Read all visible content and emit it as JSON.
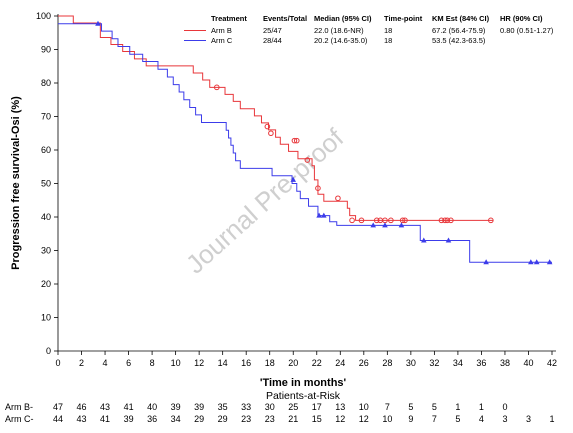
{
  "chart_data": {
    "type": "line",
    "subtype": "kaplan-meier",
    "ylabel": "Progression free survival-Osi (%)",
    "xlabel": "'Time in months'",
    "xlim": [
      0,
      42
    ],
    "ylim": [
      0,
      100
    ],
    "xticks": [
      "0",
      "2",
      "4",
      "6",
      "8",
      "10",
      "12",
      "14",
      "16",
      "18",
      "20",
      "22",
      "24",
      "26",
      "28",
      "30",
      "32",
      "34",
      "36",
      "38",
      "40",
      "42"
    ],
    "yticks": [
      "0",
      "10",
      "20",
      "30",
      "40",
      "50",
      "60",
      "70",
      "80",
      "90",
      "100"
    ],
    "colors": {
      "arm_b": "#e8363a",
      "arm_c": "#3c3cea"
    },
    "series": [
      {
        "name": "Arm B",
        "marker": "circle",
        "steps": [
          [
            0,
            100
          ],
          [
            1.3,
            97.9
          ],
          [
            3.6,
            93.6
          ],
          [
            4.5,
            91.5
          ],
          [
            5.5,
            89.4
          ],
          [
            6.5,
            87.2
          ],
          [
            7.5,
            85.1
          ],
          [
            11.5,
            83.0
          ],
          [
            12.3,
            80.9
          ],
          [
            12.9,
            78.7
          ],
          [
            14.2,
            76.6
          ],
          [
            14.9,
            74.5
          ],
          [
            15.5,
            72.3
          ],
          [
            16.7,
            70.2
          ],
          [
            17.3,
            68.1
          ],
          [
            17.9,
            66.0
          ],
          [
            18.5,
            63.8
          ],
          [
            18.9,
            61.7
          ],
          [
            19.6,
            59.6
          ],
          [
            20.4,
            57.4
          ],
          [
            21.6,
            55.3
          ],
          [
            21.8,
            51.1
          ],
          [
            22.1,
            46.8
          ],
          [
            22.6,
            44.7
          ],
          [
            24.6,
            42.6
          ],
          [
            24.8,
            40.4
          ],
          [
            25.3,
            39.0
          ],
          [
            37.0,
            39.0
          ]
        ],
        "censors": [
          [
            13.5,
            78.7
          ],
          [
            17.8,
            67.0
          ],
          [
            18.1,
            65.0
          ],
          [
            20.1,
            62.8
          ],
          [
            20.3,
            62.8
          ],
          [
            21.2,
            57.0
          ],
          [
            22.1,
            48.6
          ],
          [
            23.8,
            45.6
          ],
          [
            25.0,
            39.0
          ],
          [
            25.8,
            39.0
          ],
          [
            27.1,
            39.0
          ],
          [
            27.4,
            39.0
          ],
          [
            27.8,
            39.0
          ],
          [
            28.3,
            39.0
          ],
          [
            29.3,
            39.0
          ],
          [
            29.5,
            39.0
          ],
          [
            32.6,
            39.0
          ],
          [
            32.9,
            39.0
          ],
          [
            33.1,
            39.0
          ],
          [
            33.4,
            39.0
          ],
          [
            36.8,
            39.0
          ]
        ]
      },
      {
        "name": "Arm C",
        "marker": "triangle",
        "steps": [
          [
            0,
            97.7
          ],
          [
            3.7,
            95.5
          ],
          [
            4.6,
            93.2
          ],
          [
            5.1,
            90.9
          ],
          [
            6.1,
            88.6
          ],
          [
            7.2,
            86.4
          ],
          [
            8.5,
            84.1
          ],
          [
            9.3,
            81.8
          ],
          [
            9.8,
            79.5
          ],
          [
            10.3,
            77.3
          ],
          [
            10.7,
            75.0
          ],
          [
            11.2,
            72.7
          ],
          [
            11.7,
            70.5
          ],
          [
            12.2,
            68.2
          ],
          [
            14.3,
            65.9
          ],
          [
            14.5,
            63.6
          ],
          [
            14.7,
            61.4
          ],
          [
            14.9,
            59.1
          ],
          [
            15.1,
            56.8
          ],
          [
            15.5,
            54.5
          ],
          [
            18.2,
            52.3
          ],
          [
            19.9,
            50.0
          ],
          [
            20.3,
            47.7
          ],
          [
            20.6,
            45.5
          ],
          [
            21.3,
            43.2
          ],
          [
            22.1,
            40.4
          ],
          [
            23.1,
            38.6
          ],
          [
            23.7,
            37.5
          ],
          [
            30.8,
            33.0
          ],
          [
            35.0,
            26.5
          ],
          [
            42.0,
            26.5
          ]
        ],
        "censors": [
          [
            3.4,
            97.7
          ],
          [
            20.0,
            51.1
          ],
          [
            22.2,
            40.4
          ],
          [
            22.6,
            40.4
          ],
          [
            26.8,
            37.5
          ],
          [
            27.8,
            37.5
          ],
          [
            29.2,
            37.5
          ],
          [
            31.1,
            33.0
          ],
          [
            33.2,
            33.0
          ],
          [
            36.4,
            26.5
          ],
          [
            40.2,
            26.5
          ],
          [
            40.7,
            26.5
          ],
          [
            41.8,
            26.5
          ]
        ]
      }
    ],
    "summary_table": {
      "headers": [
        "Treatment",
        "Events/Total",
        "Median (95% CI)",
        "Time-point",
        "KM Est (84% CI)",
        "HR (90% CI)"
      ],
      "rows": [
        [
          "Arm B",
          "25/47",
          "22.0 (18.6-NR)",
          "18",
          "67.2 (56.4-75.9)",
          "0.80 (0.51-1.27)"
        ],
        [
          "Arm C",
          "28/44",
          "20.2 (14.6-35.0)",
          "18",
          "53.5 (42.3-63.5)",
          ""
        ]
      ]
    },
    "risk_table": {
      "title": "Patients-at-Risk",
      "rows": [
        {
          "label": "Arm B-",
          "values": [
            "47",
            "46",
            "43",
            "41",
            "40",
            "39",
            "39",
            "35",
            "33",
            "30",
            "25",
            "17",
            "13",
            "10",
            "7",
            "5",
            "5",
            "1",
            "1",
            "0",
            "",
            ""
          ]
        },
        {
          "label": "Arm C-",
          "values": [
            "44",
            "43",
            "41",
            "39",
            "36",
            "34",
            "29",
            "29",
            "23",
            "23",
            "21",
            "15",
            "12",
            "12",
            "10",
            "9",
            "7",
            "5",
            "4",
            "3",
            "3",
            "1"
          ]
        }
      ]
    },
    "watermark": "Journal Pre-proof"
  }
}
